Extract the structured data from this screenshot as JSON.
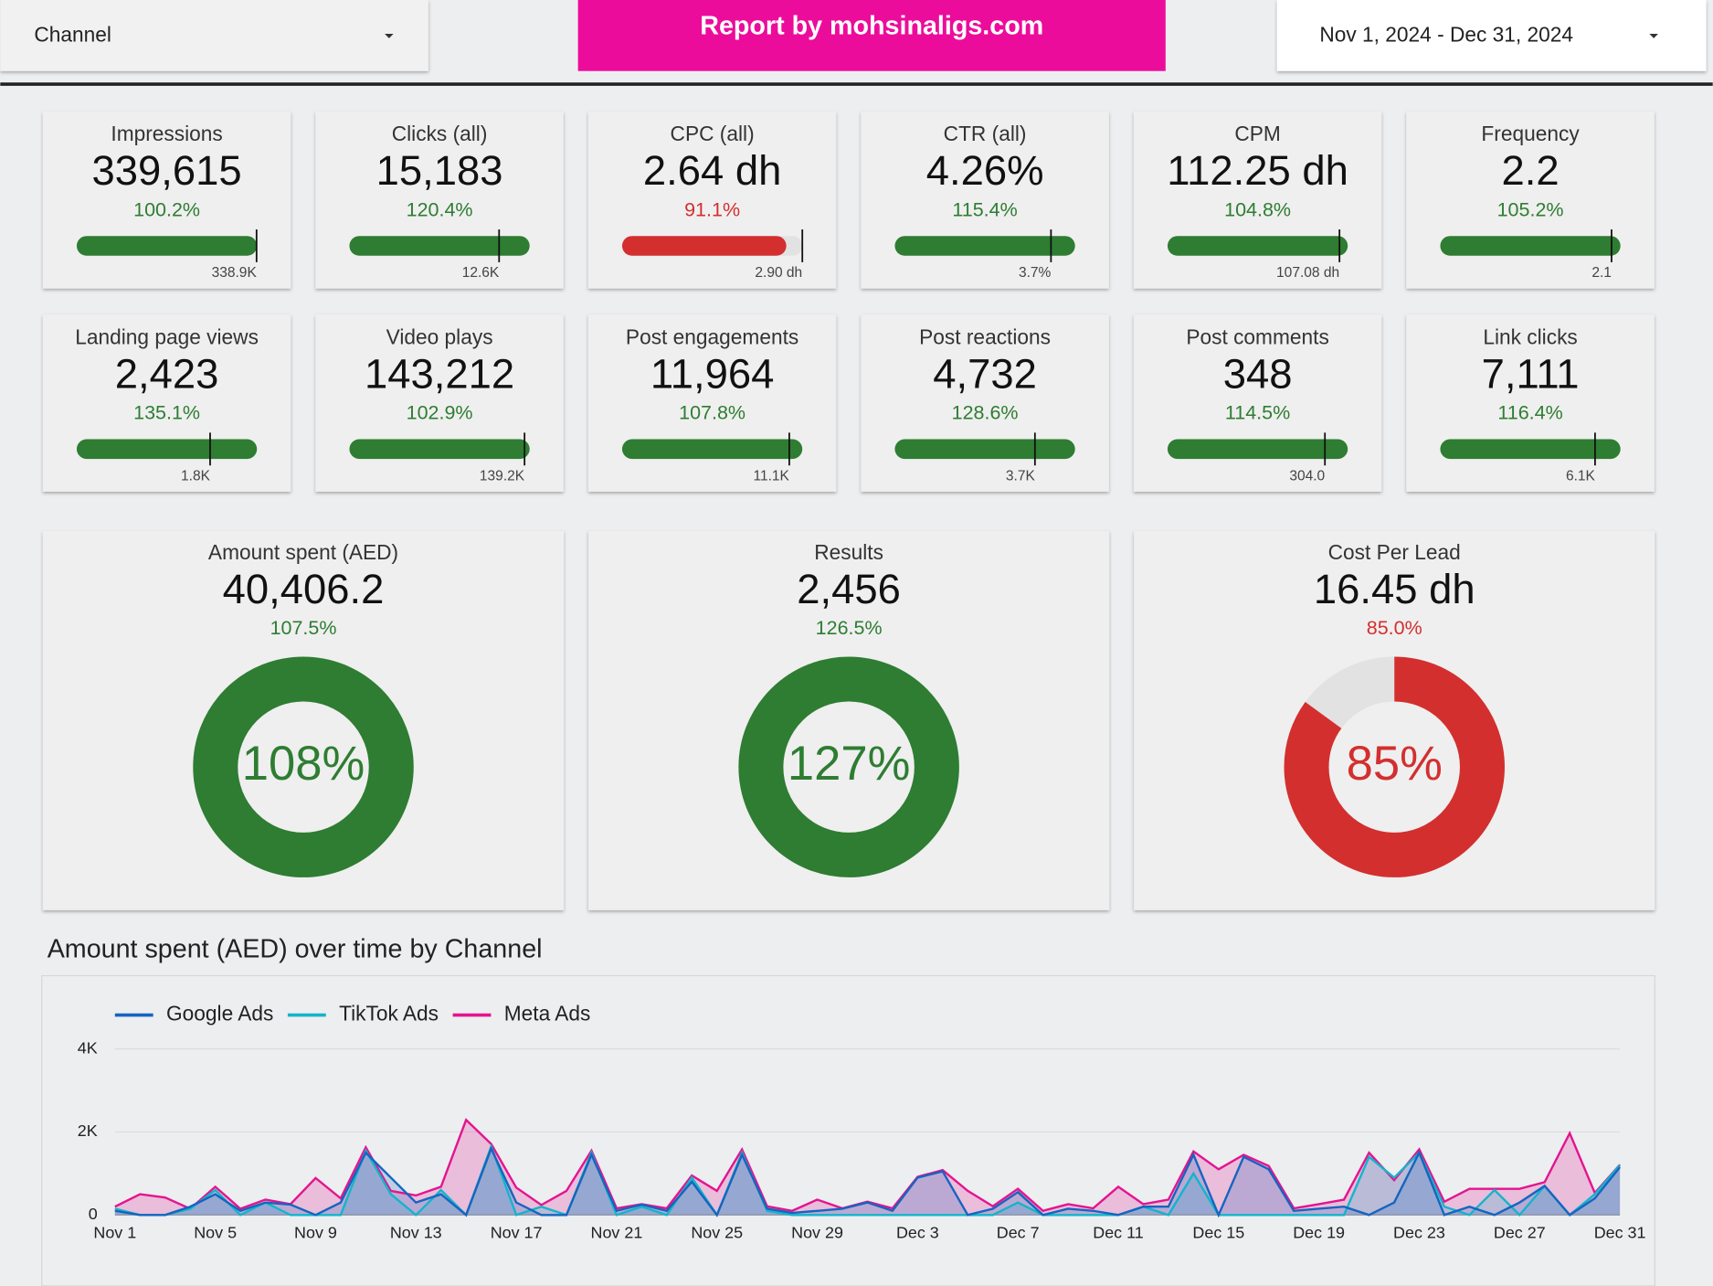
{
  "header": {
    "filter_label": "Channel",
    "banner": "Report by mohsinaligs.com",
    "date_range": "Nov 1, 2024 - Dec 31, 2024"
  },
  "scorecards": [
    {
      "label": "Impressions",
      "value": "339,615",
      "change": 100.2,
      "change_label": "100.2%",
      "target_label": "338.9K",
      "color": "#2e7d32"
    },
    {
      "label": "Clicks (all)",
      "value": "15,183",
      "change": 120.4,
      "change_label": "120.4%",
      "target_label": "12.6K",
      "color": "#2e7d32"
    },
    {
      "label": "CPC (all)",
      "value": "2.64 dh",
      "change": 91.1,
      "change_label": "91.1%",
      "target_label": "2.90 dh",
      "color": "#d32f2f"
    },
    {
      "label": "CTR (all)",
      "value": "4.26%",
      "change": 115.4,
      "change_label": "115.4%",
      "target_label": "3.7%",
      "color": "#2e7d32"
    },
    {
      "label": "CPM",
      "value": "112.25 dh",
      "change": 104.8,
      "change_label": "104.8%",
      "target_label": "107.08 dh",
      "color": "#2e7d32"
    },
    {
      "label": "Frequency",
      "value": "2.2",
      "change": 105.2,
      "change_label": "105.2%",
      "target_label": "2.1",
      "color": "#2e7d32"
    },
    {
      "label": "Landing page views",
      "value": "2,423",
      "change": 135.1,
      "change_label": "135.1%",
      "target_label": "1.8K",
      "color": "#2e7d32"
    },
    {
      "label": "Video plays",
      "value": "143,212",
      "change": 102.9,
      "change_label": "102.9%",
      "target_label": "139.2K",
      "color": "#2e7d32"
    },
    {
      "label": "Post engagements",
      "value": "11,964",
      "change": 107.8,
      "change_label": "107.8%",
      "target_label": "11.1K",
      "color": "#2e7d32"
    },
    {
      "label": "Post reactions",
      "value": "4,732",
      "change": 128.6,
      "change_label": "128.6%",
      "target_label": "3.7K",
      "color": "#2e7d32"
    },
    {
      "label": "Post comments",
      "value": "348",
      "change": 114.5,
      "change_label": "114.5%",
      "target_label": "304.0",
      "color": "#2e7d32"
    },
    {
      "label": "Link clicks",
      "value": "7,111",
      "change": 116.4,
      "change_label": "116.4%",
      "target_label": "6.1K",
      "color": "#2e7d32"
    }
  ],
  "gauges": [
    {
      "label": "Amount spent (AED)",
      "value": "40,406.2",
      "change": 107.5,
      "change_label": "107.5%",
      "center_label": "108%",
      "color": "#2e7d32"
    },
    {
      "label": "Results",
      "value": "2,456",
      "change": 126.5,
      "change_label": "126.5%",
      "center_label": "127%",
      "color": "#2e7d32"
    },
    {
      "label": "Cost Per Lead",
      "value": "16.45 dh",
      "change": 85.0,
      "change_label": "85.0%",
      "center_label": "85%",
      "color": "#d32f2f"
    }
  ],
  "chart_data": {
    "type": "area",
    "title": "Amount spent (AED) over time by Channel",
    "categories": [
      "Nov 1",
      null,
      null,
      null,
      "Nov 5",
      null,
      null,
      null,
      "Nov 9",
      null,
      null,
      null,
      "Nov 13",
      null,
      null,
      null,
      "Nov 17",
      null,
      null,
      null,
      "Nov 21",
      null,
      null,
      null,
      "Nov 25",
      null,
      null,
      null,
      "Nov 29",
      null,
      null,
      null,
      "Dec 3",
      null,
      null,
      null,
      "Dec 7",
      null,
      null,
      null,
      "Dec 11",
      null,
      null,
      null,
      "Dec 15",
      null,
      null,
      null,
      "Dec 19",
      null,
      null,
      null,
      "Dec 23",
      null,
      null,
      null,
      "Dec 27",
      null,
      null,
      null,
      "Dec 31"
    ],
    "series": [
      {
        "name": "Google Ads",
        "color": "#1565c0",
        "values": [
          100,
          0,
          0,
          200,
          500,
          100,
          300,
          250,
          0,
          300,
          1500,
          900,
          300,
          500,
          0,
          1600,
          300,
          0,
          0,
          1450,
          100,
          250,
          100,
          800,
          0,
          1450,
          150,
          50,
          100,
          150,
          300,
          100,
          900,
          1050,
          0,
          150,
          550,
          0,
          150,
          100,
          0,
          200,
          200,
          1450,
          0,
          1400,
          1100,
          100,
          150,
          200,
          0,
          300,
          1500,
          0,
          200,
          0,
          300,
          700,
          0,
          400,
          1150
        ]
      },
      {
        "name": "TikTok Ads",
        "color": "#12b5cb",
        "values": [
          150,
          0,
          0,
          150,
          600,
          0,
          300,
          0,
          0,
          0,
          1550,
          500,
          0,
          600,
          0,
          1650,
          0,
          200,
          0,
          1500,
          0,
          200,
          0,
          900,
          0,
          1500,
          100,
          0,
          0,
          0,
          0,
          0,
          0,
          0,
          0,
          0,
          300,
          0,
          0,
          0,
          0,
          200,
          0,
          1000,
          0,
          0,
          0,
          0,
          0,
          0,
          1400,
          900,
          1500,
          200,
          0,
          600,
          0,
          700,
          0,
          500,
          1200
        ]
      },
      {
        "name": "Meta Ads",
        "color": "#e4148f",
        "values": [
          200,
          500,
          420,
          150,
          680,
          150,
          370,
          260,
          890,
          400,
          1630,
          580,
          470,
          680,
          2290,
          1710,
          660,
          240,
          580,
          1550,
          160,
          260,
          160,
          950,
          580,
          1580,
          210,
          100,
          370,
          160,
          320,
          160,
          920,
          1080,
          580,
          210,
          630,
          100,
          260,
          160,
          680,
          260,
          370,
          1530,
          1100,
          1450,
          1180,
          160,
          260,
          370,
          1500,
          840,
          1580,
          320,
          630,
          630,
          630,
          790,
          1970,
          530,
          1210
        ]
      }
    ],
    "ylim": [
      0,
      4000
    ],
    "yticks": [
      0,
      {
        "value": 2000,
        "label": "2K"
      },
      {
        "value": 4000,
        "label": "4K"
      }
    ],
    "grid": true,
    "legend": "top-left"
  }
}
